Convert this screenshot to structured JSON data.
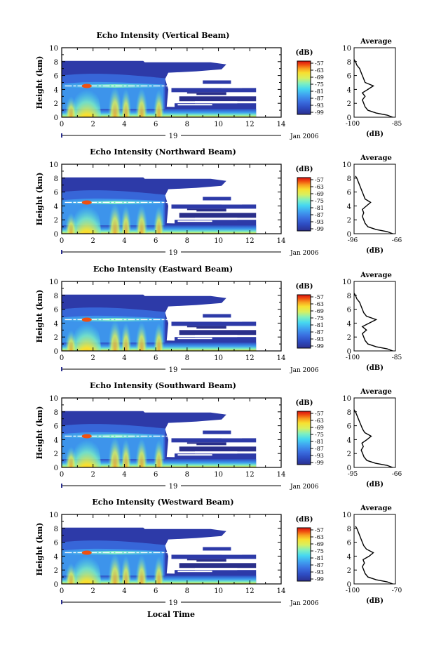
{
  "chart_data": [
    {
      "type": "heatmap",
      "title": "Echo Intensity (Vertical Beam)",
      "ylabel": "Height (km)",
      "x_ticks": [
        "0",
        "2",
        "4",
        "6",
        "8",
        "10",
        "12",
        "14"
      ],
      "y_ticks": [
        "0",
        "2",
        "4",
        "6",
        "8",
        "10"
      ],
      "xlim": [
        0,
        14
      ],
      "ylim": [
        0,
        10
      ],
      "date_day": "19",
      "date_label": "Jan 2006",
      "colorbar_unit": "(dB)",
      "colorbar_ticks": [
        "-57",
        "-63",
        "-69",
        "-75",
        "-81",
        "-87",
        "-93",
        "-99"
      ],
      "colorscale": [
        "#2b2f8f",
        "#2d4bc0",
        "#3a6fe0",
        "#3fa0f0",
        "#46d8f0",
        "#7ff0c0",
        "#d8f060",
        "#f8e030",
        "#f8a020",
        "#f05010",
        "#d81010"
      ],
      "profile": {
        "title": "Average",
        "xlabel": "(dB)",
        "x_ticks": [
          "-100",
          "-85"
        ],
        "xlim": [
          -100,
          -85
        ],
        "ylim": [
          0,
          10
        ],
        "y_ticks": [
          "0",
          "2",
          "4",
          "6",
          "8",
          "10"
        ],
        "heights": [
          0,
          0.3,
          0.6,
          1.0,
          1.5,
          2.0,
          2.5,
          3.0,
          3.5,
          4.0,
          4.5,
          5.0,
          5.5,
          6.0,
          6.5,
          7.0,
          7.5,
          8.0,
          8.3
        ],
        "values": [
          -86,
          -88,
          -92,
          -95,
          -96,
          -96.5,
          -97,
          -96,
          -97,
          -95,
          -93,
          -96,
          -96.5,
          -97,
          -97.5,
          -98,
          -99,
          -99.5,
          -100
        ]
      }
    },
    {
      "type": "heatmap",
      "title": "Echo Intensity (Northward Beam)",
      "ylabel": "Height (km)",
      "x_ticks": [
        "0",
        "2",
        "4",
        "6",
        "8",
        "10",
        "12",
        "14"
      ],
      "y_ticks": [
        "0",
        "2",
        "4",
        "6",
        "8",
        "10"
      ],
      "xlim": [
        0,
        14
      ],
      "ylim": [
        0,
        10
      ],
      "date_day": "19",
      "date_label": "Jan 2006",
      "colorbar_unit": "(dB)",
      "colorbar_ticks": [
        "-57",
        "-63",
        "-69",
        "-75",
        "-81",
        "-87",
        "-93",
        "-99"
      ],
      "profile": {
        "title": "Average",
        "xlabel": "(dB)",
        "x_ticks": [
          "-96",
          "-66"
        ],
        "xlim": [
          -96,
          -66
        ],
        "ylim": [
          0,
          10
        ],
        "y_ticks": [
          "0",
          "2",
          "4",
          "6",
          "8",
          "10"
        ],
        "heights": [
          0,
          0.3,
          0.6,
          1.0,
          1.5,
          2.0,
          2.5,
          3.0,
          3.5,
          4.0,
          4.5,
          5.0,
          5.5,
          6.0,
          6.5,
          7.0,
          7.5,
          8.0,
          8.3
        ],
        "values": [
          -68,
          -72,
          -80,
          -86,
          -88,
          -89,
          -90,
          -89,
          -90,
          -87,
          -84,
          -88,
          -89,
          -90,
          -91,
          -92,
          -93,
          -94,
          -95
        ]
      }
    },
    {
      "type": "heatmap",
      "title": "Echo Intensity (Eastward Beam)",
      "ylabel": "Height (km)",
      "x_ticks": [
        "0",
        "2",
        "4",
        "6",
        "8",
        "10",
        "12",
        "14"
      ],
      "y_ticks": [
        "0",
        "2",
        "4",
        "6",
        "8",
        "10"
      ],
      "xlim": [
        0,
        14
      ],
      "ylim": [
        0,
        10
      ],
      "date_day": "19",
      "date_label": "Jan 2006",
      "colorbar_unit": "(dB)",
      "colorbar_ticks": [
        "-57",
        "-63",
        "-69",
        "-75",
        "-81",
        "-87",
        "-93",
        "-99"
      ],
      "profile": {
        "title": "Average",
        "xlabel": "(dB)",
        "x_ticks": [
          "-100",
          "-85"
        ],
        "xlim": [
          -100,
          -85
        ],
        "ylim": [
          0,
          10
        ],
        "y_ticks": [
          "0",
          "2",
          "4",
          "6",
          "8",
          "10"
        ],
        "heights": [
          0,
          0.3,
          0.6,
          1.0,
          1.5,
          2.0,
          2.5,
          3.0,
          3.5,
          4.0,
          4.5,
          5.0,
          5.5,
          6.0,
          6.5,
          7.0,
          7.5,
          8.0,
          8.3
        ],
        "values": [
          -86,
          -88,
          -92,
          -95,
          -96,
          -96.5,
          -97,
          -95.5,
          -97,
          -94.5,
          -92,
          -95.5,
          -96.5,
          -97,
          -97.5,
          -98,
          -99,
          -99.5,
          -100
        ]
      }
    },
    {
      "type": "heatmap",
      "title": "Echo Intensity (Southward Beam)",
      "ylabel": "Height (km)",
      "x_ticks": [
        "0",
        "2",
        "4",
        "6",
        "8",
        "10",
        "12",
        "14"
      ],
      "y_ticks": [
        "0",
        "2",
        "4",
        "6",
        "8",
        "10"
      ],
      "xlim": [
        0,
        14
      ],
      "ylim": [
        0,
        10
      ],
      "date_day": "19",
      "date_label": "Jan 2006",
      "colorbar_unit": "(dB)",
      "colorbar_ticks": [
        "-57",
        "-63",
        "-69",
        "-75",
        "-81",
        "-87",
        "-93",
        "-99"
      ],
      "profile": {
        "title": "Average",
        "xlabel": "(dB)",
        "x_ticks": [
          "-95",
          "-66"
        ],
        "xlim": [
          -95,
          -66
        ],
        "ylim": [
          0,
          10
        ],
        "y_ticks": [
          "0",
          "2",
          "4",
          "6",
          "8",
          "10"
        ],
        "heights": [
          0,
          0.3,
          0.6,
          1.0,
          1.5,
          2.0,
          2.5,
          3.0,
          3.5,
          4.0,
          4.5,
          5.0,
          5.5,
          6.0,
          6.5,
          7.0,
          7.5,
          8.0,
          8.3
        ],
        "values": [
          -68,
          -72,
          -80,
          -86,
          -88,
          -89,
          -90,
          -88.5,
          -89.5,
          -86,
          -83,
          -87.5,
          -89,
          -90,
          -91,
          -92,
          -93,
          -94,
          -95
        ]
      }
    },
    {
      "type": "heatmap",
      "title": "Echo Intensity (Westward Beam)",
      "ylabel": "Height (km)",
      "xlabel": "Local Time",
      "x_ticks": [
        "0",
        "2",
        "4",
        "6",
        "8",
        "10",
        "12",
        "14"
      ],
      "y_ticks": [
        "0",
        "2",
        "4",
        "6",
        "8",
        "10"
      ],
      "xlim": [
        0,
        14
      ],
      "ylim": [
        0,
        10
      ],
      "date_day": "19",
      "date_label": "Jan 2006",
      "colorbar_unit": "(dB)",
      "colorbar_ticks": [
        "-57",
        "-63",
        "-69",
        "-75",
        "-81",
        "-87",
        "-93",
        "-99"
      ],
      "profile": {
        "title": "Average",
        "xlabel": "(dB)",
        "x_ticks": [
          "-100",
          "-70"
        ],
        "xlim": [
          -100,
          -70
        ],
        "ylim": [
          0,
          10
        ],
        "y_ticks": [
          "0",
          "2",
          "4",
          "6",
          "8",
          "10"
        ],
        "heights": [
          0,
          0.3,
          0.6,
          1.0,
          1.5,
          2.0,
          2.5,
          3.0,
          3.5,
          4.0,
          4.5,
          5.0,
          5.5,
          6.0,
          6.5,
          7.0,
          7.5,
          8.0,
          8.3
        ],
        "values": [
          -72,
          -76,
          -84,
          -90,
          -92,
          -93,
          -94,
          -92.5,
          -93.5,
          -89,
          -86,
          -91,
          -93,
          -94,
          -95,
          -96,
          -97,
          -98,
          -99
        ]
      }
    }
  ]
}
